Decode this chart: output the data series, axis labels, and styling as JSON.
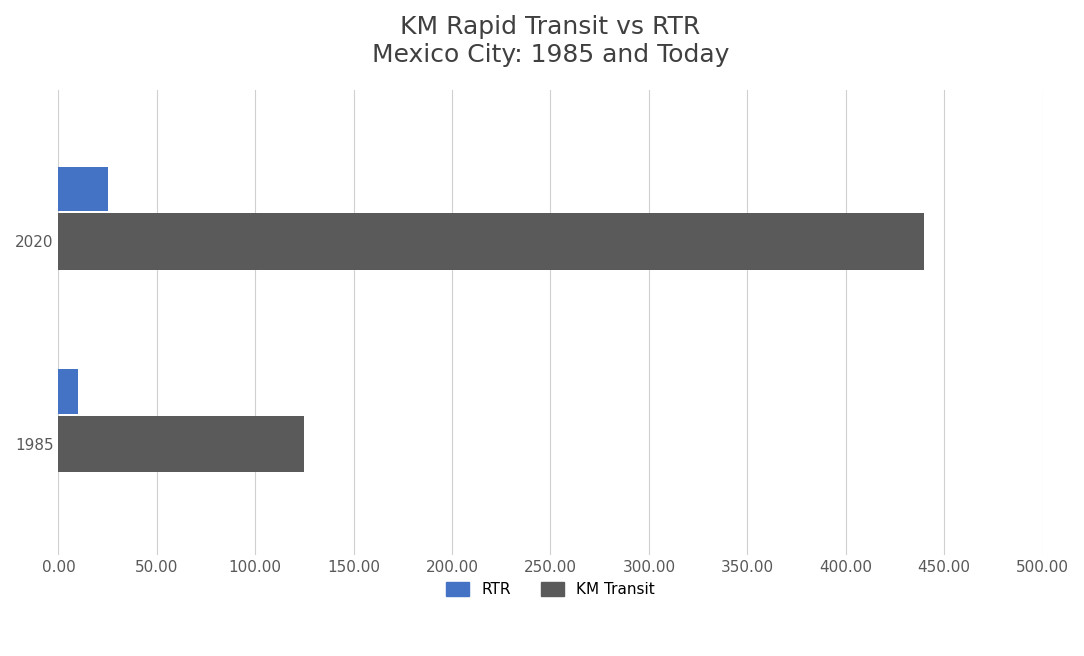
{
  "title_line1": "KM Rapid Transit vs RTR",
  "title_line2": "Mexico City: 1985 and Today",
  "categories": [
    "2020",
    "1985"
  ],
  "rtr_values": [
    25,
    10
  ],
  "km_transit_values": [
    440,
    125
  ],
  "rtr_color": "#4472C4",
  "km_transit_color": "#5a5a5a",
  "background_color": "#ffffff",
  "xlim": [
    0,
    500
  ],
  "xticks": [
    0,
    50,
    100,
    150,
    200,
    250,
    300,
    350,
    400,
    450,
    500
  ],
  "legend_labels": [
    "RTR",
    "KM Transit"
  ],
  "title_fontsize": 18,
  "tick_fontsize": 11,
  "legend_fontsize": 11,
  "rtr_bar_height": 0.22,
  "km_bar_height": 0.28,
  "grid_color": "#d0d0d0",
  "title_color": "#404040",
  "tick_color": "#595959"
}
